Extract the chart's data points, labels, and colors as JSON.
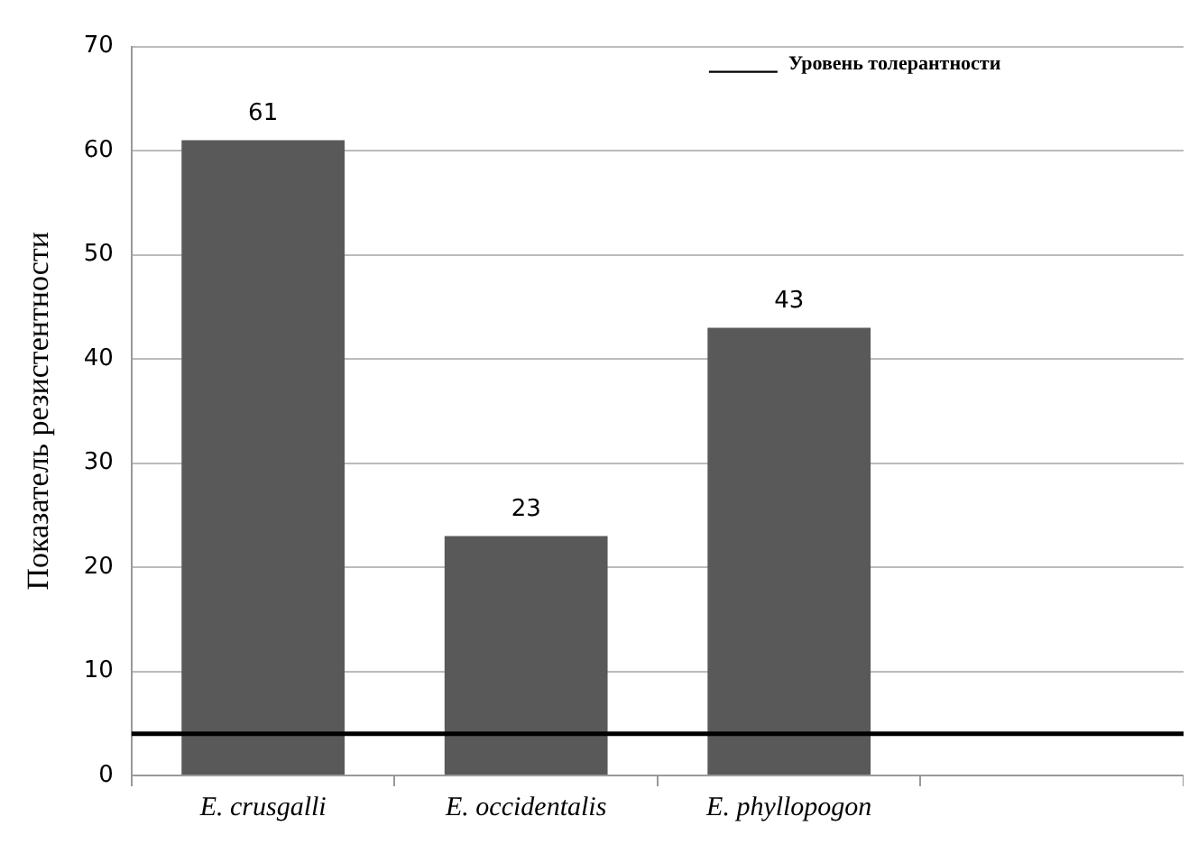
{
  "chart_data": {
    "type": "bar",
    "ylabel": "Показатель резистентности",
    "categories": [
      "E. crusgalli",
      "E. occidentalis",
      "E. phyllopogon",
      null
    ],
    "values": [
      61,
      23,
      43,
      null
    ],
    "color": "#595959",
    "data_labels": true,
    "ylim": [
      0,
      70
    ],
    "yticks": [
      0,
      10,
      20,
      30,
      40,
      50,
      60,
      70
    ],
    "grid": "y",
    "ref_lines": [
      {
        "axis": "y",
        "value": 4,
        "label": "Уровень толерантности",
        "color": "#000000"
      }
    ]
  }
}
